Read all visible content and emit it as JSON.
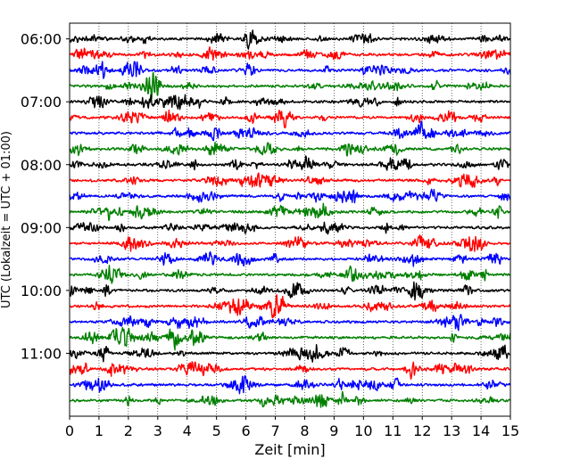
{
  "chart_data": {
    "type": "line",
    "title": "",
    "xlabel": "Zeit  [min]",
    "ylabel": "UTC (Lokalzeit = UTC + 01:00)",
    "xlim": [
      0,
      15
    ],
    "x_ticks": [
      "0",
      "1",
      "2",
      "3",
      "4",
      "5",
      "6",
      "7",
      "8",
      "9",
      "10",
      "11",
      "12",
      "13",
      "14",
      "15"
    ],
    "y_ticks": [
      "06:00",
      "07:00",
      "08:00",
      "09:00",
      "10:00",
      "11:00"
    ],
    "y_range": [
      "05:45",
      "12:00"
    ],
    "trace_interval_minutes": 15,
    "grid": {
      "x": true,
      "y": false,
      "style": "dotted"
    },
    "legend": "none",
    "series": [
      {
        "start": "06:00",
        "color": "#000000"
      },
      {
        "start": "06:15",
        "color": "#ff0000"
      },
      {
        "start": "06:30",
        "color": "#0000ff"
      },
      {
        "start": "06:45",
        "color": "#007f00"
      },
      {
        "start": "07:00",
        "color": "#000000"
      },
      {
        "start": "07:15",
        "color": "#ff0000"
      },
      {
        "start": "07:30",
        "color": "#0000ff"
      },
      {
        "start": "07:45",
        "color": "#007f00"
      },
      {
        "start": "08:00",
        "color": "#000000"
      },
      {
        "start": "08:15",
        "color": "#ff0000"
      },
      {
        "start": "08:30",
        "color": "#0000ff"
      },
      {
        "start": "08:45",
        "color": "#007f00"
      },
      {
        "start": "09:00",
        "color": "#000000"
      },
      {
        "start": "09:15",
        "color": "#ff0000"
      },
      {
        "start": "09:30",
        "color": "#0000ff"
      },
      {
        "start": "09:45",
        "color": "#007f00"
      },
      {
        "start": "10:00",
        "color": "#000000"
      },
      {
        "start": "10:15",
        "color": "#ff0000"
      },
      {
        "start": "10:30",
        "color": "#0000ff"
      },
      {
        "start": "10:45",
        "color": "#007f00"
      },
      {
        "start": "11:00",
        "color": "#000000"
      },
      {
        "start": "11:15",
        "color": "#ff0000"
      },
      {
        "start": "11:30",
        "color": "#0000ff"
      },
      {
        "start": "11:45",
        "color": "#007f00"
      }
    ]
  }
}
